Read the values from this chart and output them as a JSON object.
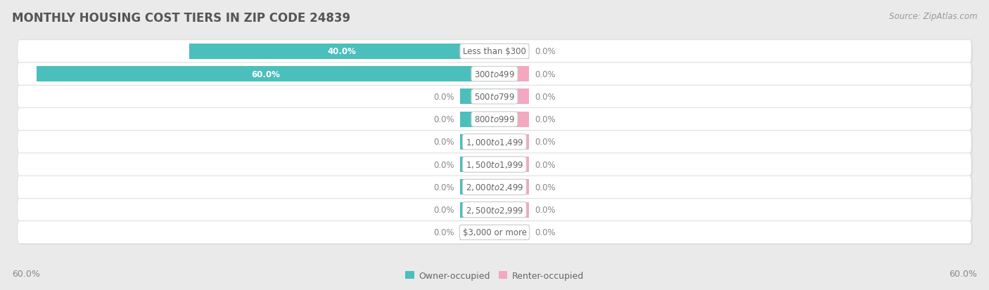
{
  "title": "MONTHLY HOUSING COST TIERS IN ZIP CODE 24839",
  "source": "Source: ZipAtlas.com",
  "categories": [
    "Less than $300",
    "$300 to $499",
    "$500 to $799",
    "$800 to $999",
    "$1,000 to $1,499",
    "$1,500 to $1,999",
    "$2,000 to $2,499",
    "$2,500 to $2,999",
    "$3,000 or more"
  ],
  "owner_values": [
    40.0,
    60.0,
    0.0,
    0.0,
    0.0,
    0.0,
    0.0,
    0.0,
    0.0
  ],
  "renter_values": [
    0.0,
    0.0,
    0.0,
    0.0,
    0.0,
    0.0,
    0.0,
    0.0,
    0.0
  ],
  "owner_color": "#4BBFBC",
  "renter_color": "#F2A8BE",
  "owner_label": "Owner-occupied",
  "renter_label": "Renter-occupied",
  "bg_color": "#eaeaea",
  "row_bg_color": "#ffffff",
  "row_border_color": "#d8d8d8",
  "max_value": 60.0,
  "x_axis_label_left": "60.0%",
  "x_axis_label_right": "60.0%",
  "title_fontsize": 12,
  "source_fontsize": 8.5,
  "bar_label_fontsize": 8.5,
  "category_fontsize": 8.5,
  "title_color": "#555555",
  "source_color": "#999999",
  "label_color": "#888888",
  "white_label_color": "#ffffff",
  "cat_label_color": "#666666"
}
